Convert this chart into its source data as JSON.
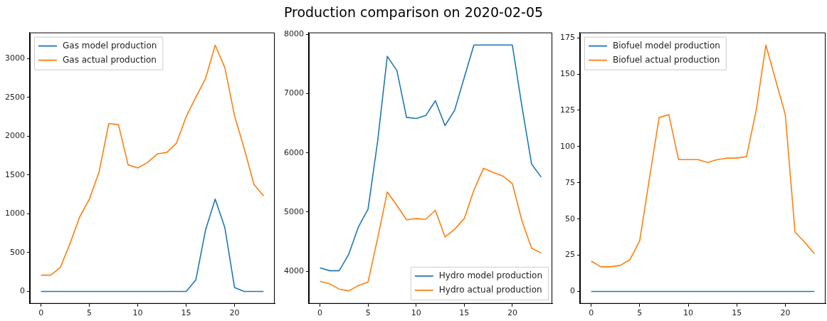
{
  "chart_data": [
    {
      "type": "other",
      "title": "Production comparison on 2020-02-05"
    },
    {
      "type": "line",
      "x": [
        0,
        1,
        2,
        3,
        4,
        5,
        6,
        7,
        8,
        9,
        10,
        11,
        12,
        13,
        14,
        15,
        16,
        17,
        18,
        19,
        20,
        21,
        22,
        23
      ],
      "xlim": [
        -1.15,
        24.15
      ],
      "xticks": [
        0,
        5,
        10,
        15,
        20
      ],
      "ylim": [
        -158,
        3334
      ],
      "yticks": [
        0,
        500,
        1000,
        1500,
        2000,
        2500,
        3000
      ],
      "legend": "top left",
      "grid": false,
      "series": [
        {
          "name": "Gas model production",
          "color": "#1f77b4",
          "values": [
            0,
            0,
            0,
            0,
            0,
            0,
            0,
            0,
            0,
            0,
            0,
            0,
            0,
            0,
            0,
            0,
            150,
            790,
            1190,
            820,
            50,
            0,
            0,
            0
          ]
        },
        {
          "name": "Gas actual production",
          "color": "#ff7f0e",
          "values": [
            210,
            210,
            310,
            620,
            960,
            1190,
            1540,
            2160,
            2150,
            1630,
            1590,
            1660,
            1770,
            1790,
            1910,
            2250,
            2500,
            2740,
            3170,
            2880,
            2260,
            1840,
            1380,
            1230
          ]
        }
      ]
    },
    {
      "type": "line",
      "x": [
        0,
        1,
        2,
        3,
        4,
        5,
        6,
        7,
        8,
        9,
        10,
        11,
        12,
        13,
        14,
        15,
        16,
        17,
        18,
        19,
        20,
        21,
        22,
        23
      ],
      "xlim": [
        -1.15,
        24.15
      ],
      "xticks": [
        0,
        5,
        10,
        15,
        20
      ],
      "ylim": [
        3452,
        8033
      ],
      "yticks": [
        4000,
        5000,
        6000,
        7000,
        8000
      ],
      "legend": "bottom right",
      "grid": false,
      "series": [
        {
          "name": "Hydro model production",
          "color": "#1f77b4",
          "values": [
            4060,
            4010,
            4010,
            4290,
            4750,
            5050,
            6200,
            7630,
            7390,
            6600,
            6580,
            6630,
            6880,
            6460,
            6720,
            7270,
            7820,
            7820,
            7820,
            7820,
            7820,
            6780,
            5810,
            5590
          ]
        },
        {
          "name": "Hydro actual production",
          "color": "#ff7f0e",
          "values": [
            3830,
            3790,
            3700,
            3670,
            3760,
            3820,
            4560,
            5340,
            5110,
            4870,
            4890,
            4880,
            5030,
            4580,
            4710,
            4890,
            5370,
            5740,
            5670,
            5610,
            5480,
            4850,
            4390,
            4310
          ]
        }
      ]
    },
    {
      "type": "line",
      "x": [
        0,
        1,
        2,
        3,
        4,
        5,
        6,
        7,
        8,
        9,
        10,
        11,
        12,
        13,
        14,
        15,
        16,
        17,
        18,
        19,
        20,
        21,
        22,
        23
      ],
      "xlim": [
        -1.15,
        24.15
      ],
      "xticks": [
        0,
        5,
        10,
        15,
        20
      ],
      "ylim": [
        -8.5,
        178.7
      ],
      "yticks": [
        0,
        25,
        50,
        75,
        100,
        125,
        150,
        175
      ],
      "legend": "top left",
      "grid": false,
      "series": [
        {
          "name": "Biofuel model production",
          "color": "#1f77b4",
          "values": [
            0,
            0,
            0,
            0,
            0,
            0,
            0,
            0,
            0,
            0,
            0,
            0,
            0,
            0,
            0,
            0,
            0,
            0,
            0,
            0,
            0,
            0,
            0,
            0
          ]
        },
        {
          "name": "Biofuel actual production",
          "color": "#ff7f0e",
          "values": [
            21,
            17,
            17,
            18,
            22,
            35,
            78,
            120,
            122,
            91,
            91,
            91,
            89,
            91,
            92,
            92,
            93,
            125,
            170,
            146,
            122,
            41,
            34,
            26
          ]
        }
      ]
    }
  ]
}
